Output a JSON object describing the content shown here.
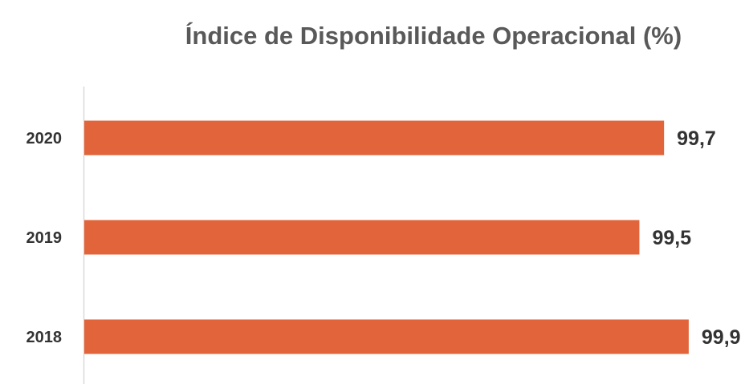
{
  "chart_data": {
    "type": "bar",
    "orientation": "horizontal",
    "title": "Índice de Disponibilidade Operacional (%)",
    "categories": [
      "2020",
      "2019",
      "2018"
    ],
    "values": [
      99.7,
      99.5,
      99.9
    ],
    "value_labels": [
      "99,7",
      "99,5",
      "99,9"
    ],
    "xlabel": "",
    "ylabel": "",
    "xlim": [
      95.0,
      100.2
    ],
    "grid": false,
    "legend": "none",
    "bar_color": "#E2643A",
    "axis_color": "#D9D9D9"
  }
}
